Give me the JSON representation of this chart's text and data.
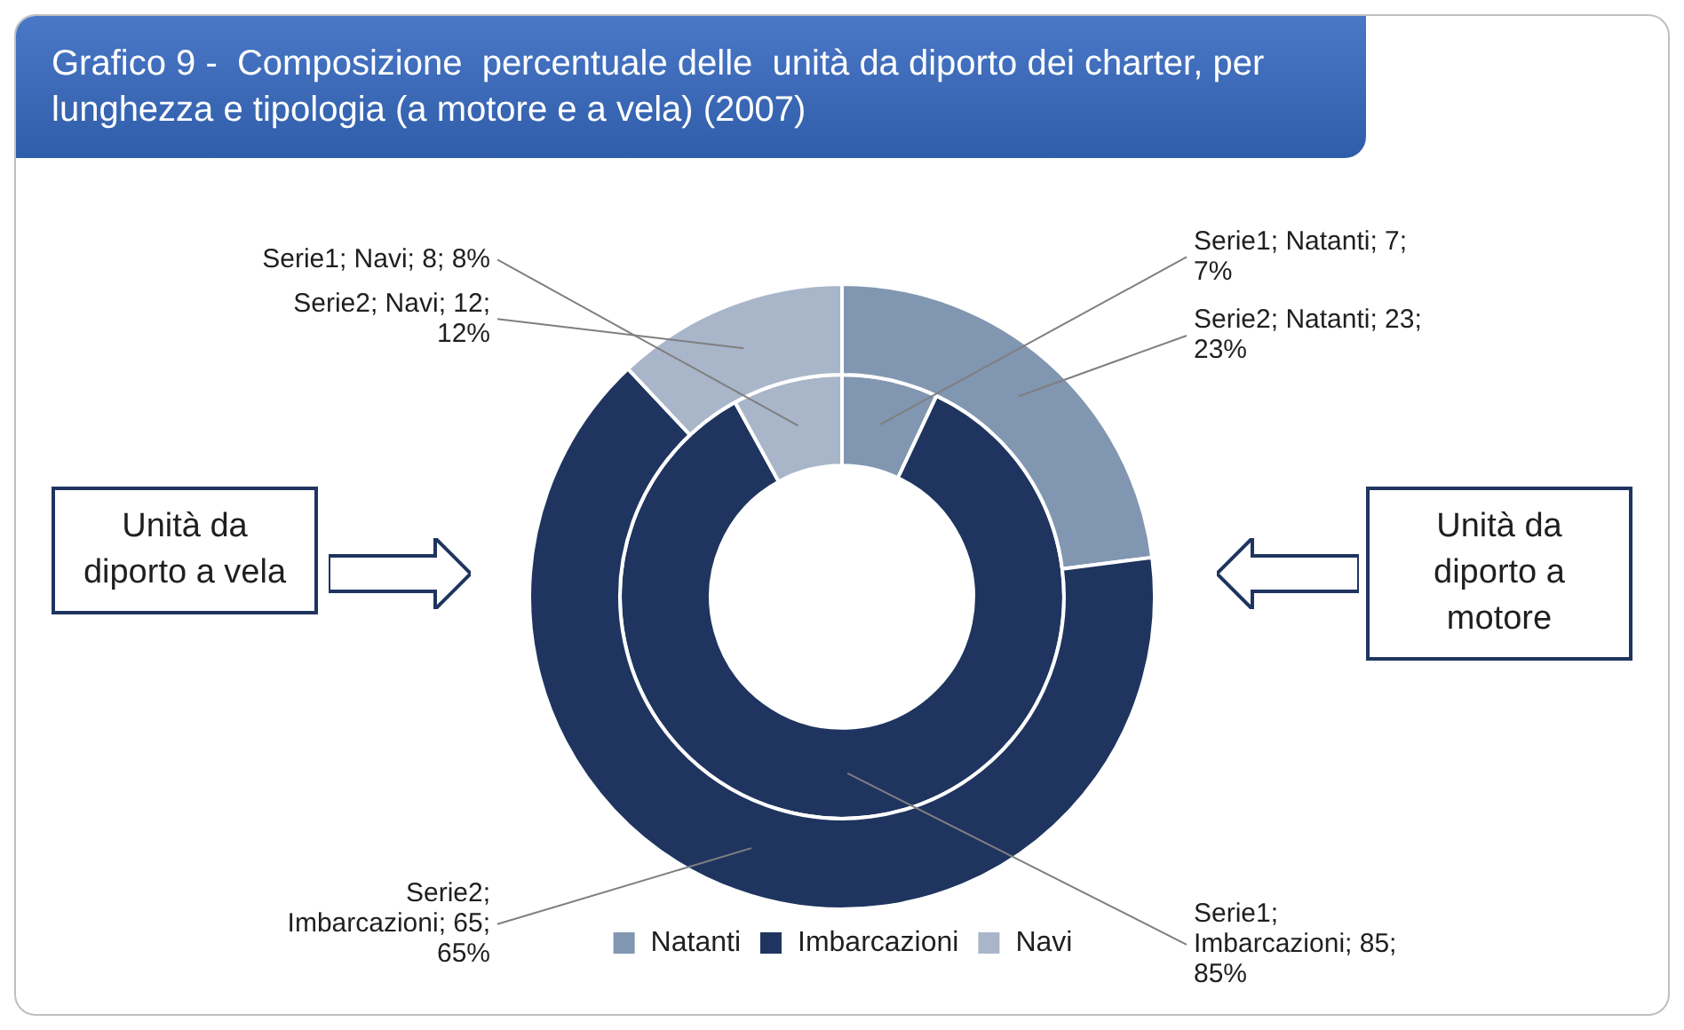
{
  "chart_data": {
    "type": "donut",
    "title": "Grafico 9 -  Composizione  percentuale delle  unità da diporto dei charter, per lunghezza e tipologia (a motore e a vela) (2007)",
    "categories": [
      "Natanti",
      "Imbarcazioni",
      "Navi"
    ],
    "colors": [
      "#8196b1",
      "#1f3560",
      "#a9b5c9"
    ],
    "series": [
      {
        "name": "Serie2",
        "values": [
          23,
          65,
          12
        ],
        "value_labels": [
          "; Natanti; 23; 23%",
          "; Imbarcazioni; 65; 65%",
          "; Navi; 12; 12%"
        ]
      },
      {
        "name": "Serie1",
        "values": [
          7,
          85,
          8
        ],
        "value_labels": [
          "; Natanti; 7; 7%",
          "; Imbarcazioni; 85; 85%",
          "; Navi; 8; 8%"
        ]
      }
    ],
    "legend": "bottom",
    "annotations": [
      "Unità da diporto a vela",
      "Unità da diporto a motore"
    ]
  }
}
